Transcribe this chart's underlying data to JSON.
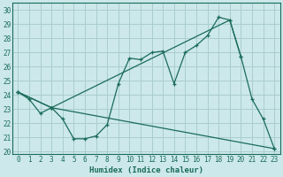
{
  "xlabel": "Humidex (Indice chaleur)",
  "bg_color": "#cce8ea",
  "grid_color": "#aacdd0",
  "line_color": "#1a6b5a",
  "xlim": [
    -0.5,
    23.5
  ],
  "ylim": [
    19.8,
    30.5
  ],
  "xticks": [
    0,
    1,
    2,
    3,
    4,
    5,
    6,
    7,
    8,
    9,
    10,
    11,
    12,
    13,
    14,
    15,
    16,
    17,
    18,
    19,
    20,
    21,
    22,
    23
  ],
  "yticks": [
    20,
    21,
    22,
    23,
    24,
    25,
    26,
    27,
    28,
    29,
    30
  ],
  "line1_x": [
    0,
    1,
    2,
    3,
    4,
    5,
    6,
    7,
    8,
    9,
    10,
    11,
    12,
    13,
    14,
    15,
    16,
    17,
    18,
    19,
    20,
    21,
    22,
    23
  ],
  "line1_y": [
    24.2,
    23.7,
    22.7,
    23.1,
    22.3,
    20.9,
    20.9,
    21.1,
    21.9,
    24.8,
    26.6,
    26.5,
    27.0,
    27.1,
    24.8,
    27.0,
    27.5,
    28.2,
    29.5,
    29.3,
    26.7,
    23.7,
    22.3,
    20.2
  ],
  "line2_x": [
    0,
    3,
    19,
    20
  ],
  "line2_y": [
    24.2,
    23.1,
    29.3,
    26.7
  ],
  "line3_x": [
    0,
    3,
    23
  ],
  "line3_y": [
    24.2,
    23.1,
    20.2
  ]
}
